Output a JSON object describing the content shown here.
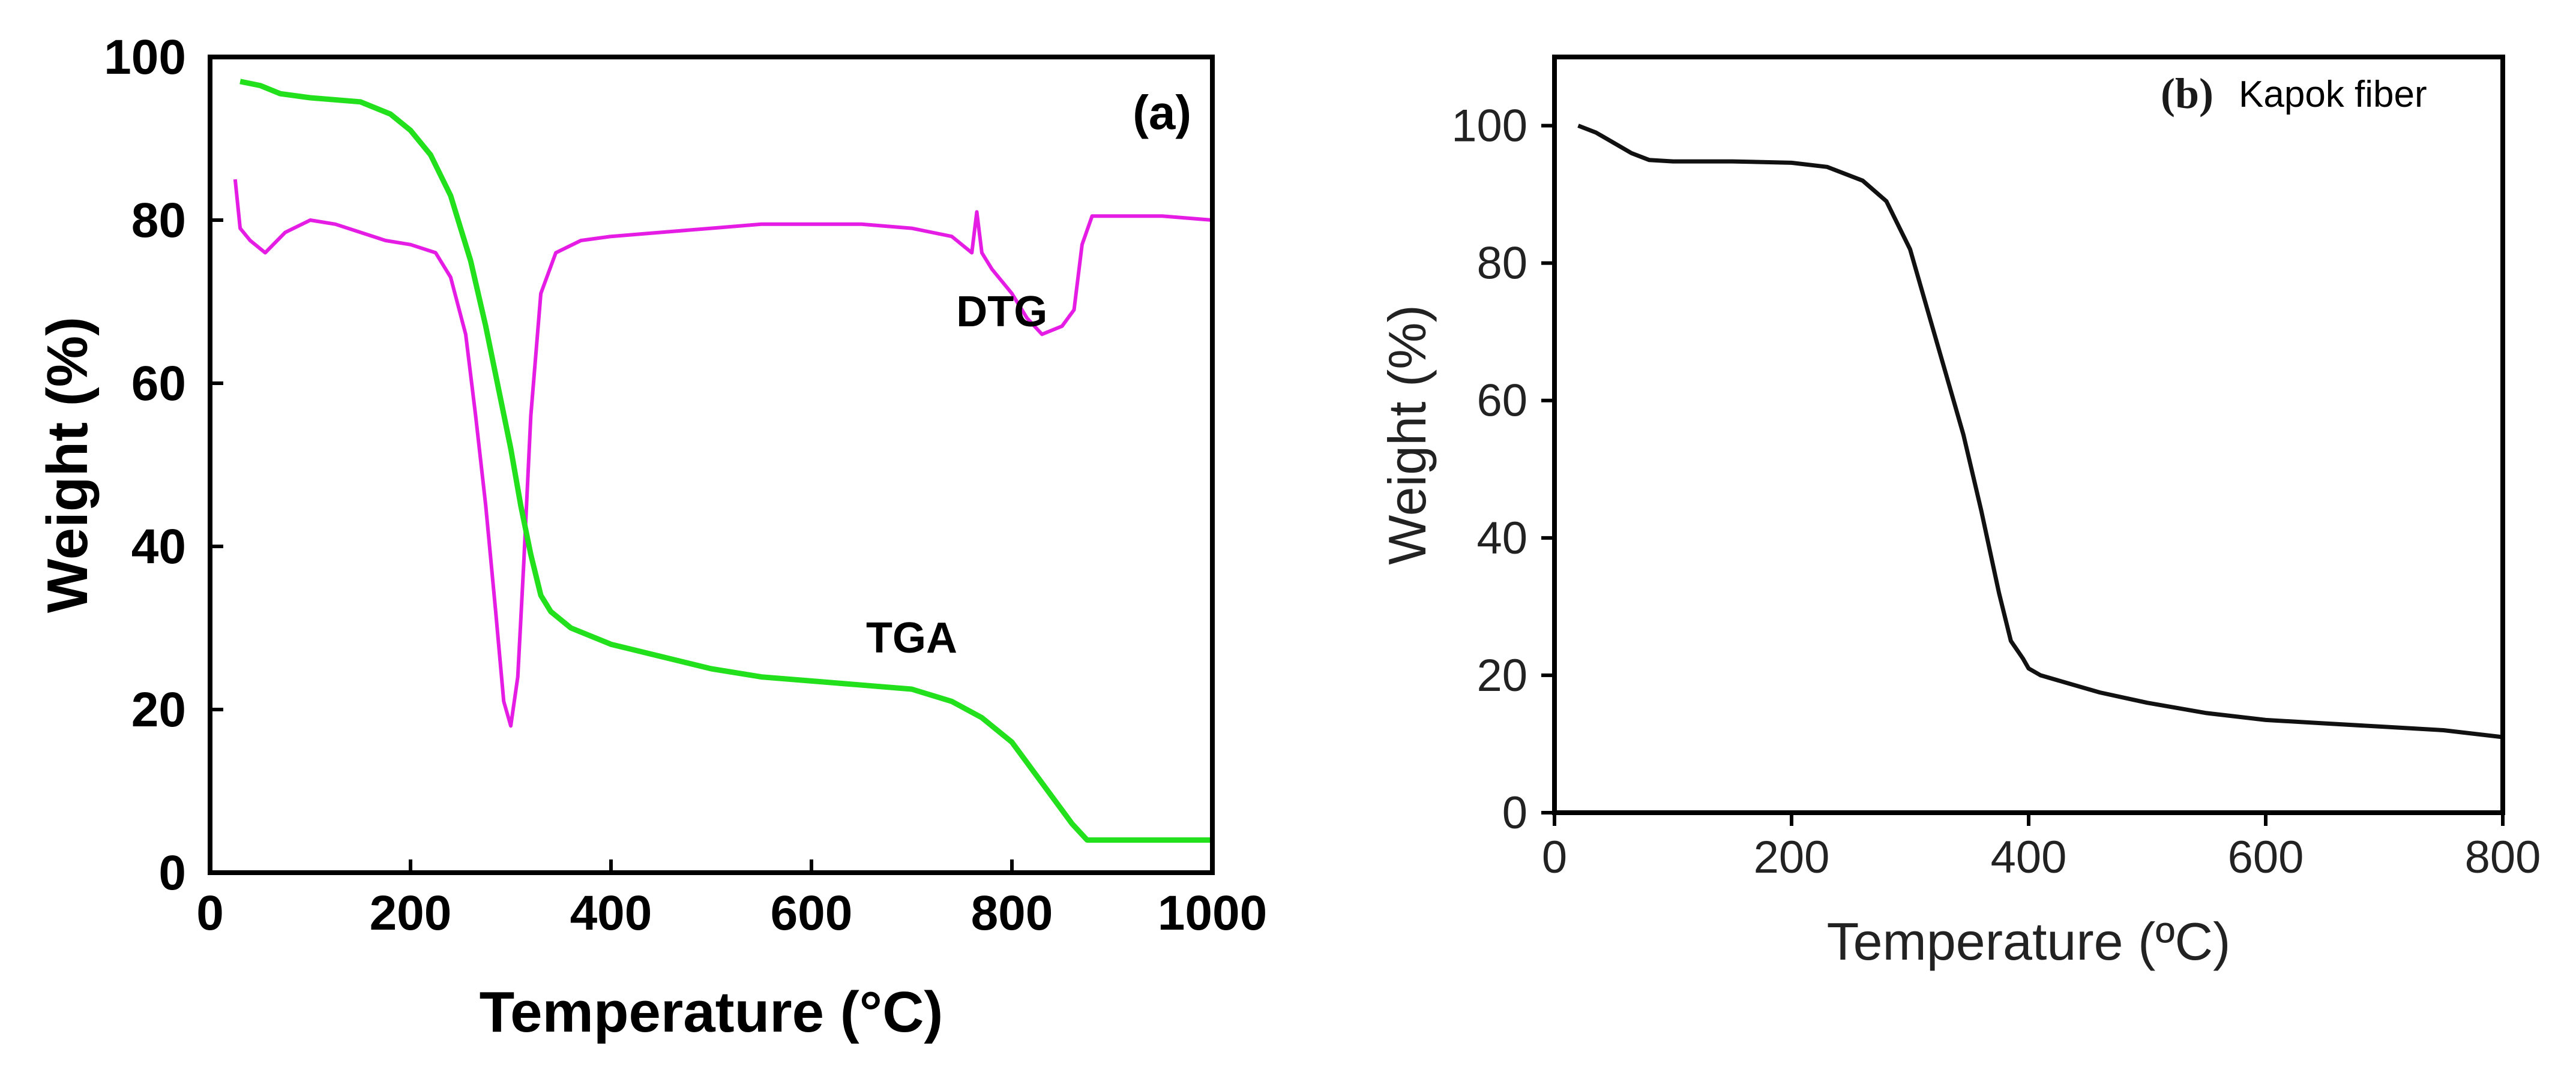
{
  "chart_data": [
    {
      "type": "line",
      "panel_label": "(a)",
      "xlabel": "Temperature (°C)",
      "ylabel": "Weight (%)",
      "xlim": [
        0,
        1000
      ],
      "ylim": [
        0,
        100
      ],
      "xticks": [
        0,
        200,
        400,
        600,
        800,
        1000
      ],
      "yticks": [
        0,
        20,
        40,
        60,
        80,
        100
      ],
      "annotations": [
        {
          "text": "DTG",
          "x": 790,
          "y": 67
        },
        {
          "text": "TGA",
          "x": 700,
          "y": 27
        }
      ],
      "series": [
        {
          "name": "TGA",
          "color": "#22e01c",
          "x": [
            30,
            50,
            70,
            100,
            150,
            180,
            200,
            220,
            240,
            260,
            275,
            290,
            300,
            310,
            320,
            330,
            340,
            360,
            400,
            450,
            500,
            550,
            600,
            650,
            700,
            740,
            770,
            800,
            830,
            860,
            875,
            900,
            950,
            1000
          ],
          "y": [
            97,
            96.5,
            95.5,
            95,
            94.5,
            93,
            91,
            88,
            83,
            75,
            67,
            58,
            52,
            45,
            39,
            34,
            32,
            30,
            28,
            26.5,
            25,
            24,
            23.5,
            23,
            22.5,
            21,
            19,
            16,
            11,
            6,
            4,
            4,
            4,
            4
          ]
        },
        {
          "name": "DTG",
          "color": "#e41ce4",
          "x": [
            25,
            30,
            40,
            55,
            75,
            100,
            125,
            150,
            175,
            200,
            225,
            240,
            255,
            265,
            275,
            285,
            293,
            300,
            307,
            313,
            320,
            330,
            345,
            370,
            400,
            450,
            500,
            550,
            600,
            650,
            700,
            740,
            760,
            765,
            770,
            780,
            800,
            815,
            830,
            850,
            862,
            870,
            880,
            900,
            950,
            1000
          ],
          "y": [
            85,
            79,
            77.5,
            76,
            78.5,
            80,
            79.5,
            78.5,
            77.5,
            77,
            76,
            73,
            66,
            56,
            45,
            32,
            21,
            18,
            24,
            38,
            56,
            71,
            76,
            77.5,
            78,
            78.5,
            79,
            79.5,
            79.5,
            79.5,
            79,
            78,
            76,
            81,
            76,
            74,
            71,
            68,
            66,
            67,
            69,
            77,
            80.5,
            80.5,
            80.5,
            80
          ]
        }
      ]
    },
    {
      "type": "line",
      "panel_label": "(b)",
      "title": "Kapok fiber",
      "xlabel": "Temperature (ºC)",
      "ylabel": "Weight (%)",
      "xlim": [
        0,
        800
      ],
      "ylim": [
        0,
        110
      ],
      "xticks": [
        0,
        200,
        400,
        600,
        800
      ],
      "yticks": [
        0,
        20,
        40,
        60,
        80,
        100
      ],
      "series": [
        {
          "name": "Kapok fiber",
          "color": "#111111",
          "x": [
            20,
            35,
            50,
            65,
            80,
            100,
            150,
            200,
            230,
            260,
            280,
            300,
            315,
            330,
            345,
            360,
            375,
            385,
            395,
            400,
            410,
            430,
            460,
            500,
            550,
            600,
            650,
            700,
            750,
            800
          ],
          "y": [
            100,
            99,
            97.5,
            96,
            95,
            94.8,
            94.8,
            94.6,
            94,
            92,
            89,
            82,
            73,
            64,
            55,
            44,
            32,
            25,
            22.5,
            21,
            20,
            19,
            17.5,
            16,
            14.5,
            13.5,
            13,
            12.5,
            12,
            11
          ]
        }
      ]
    }
  ]
}
